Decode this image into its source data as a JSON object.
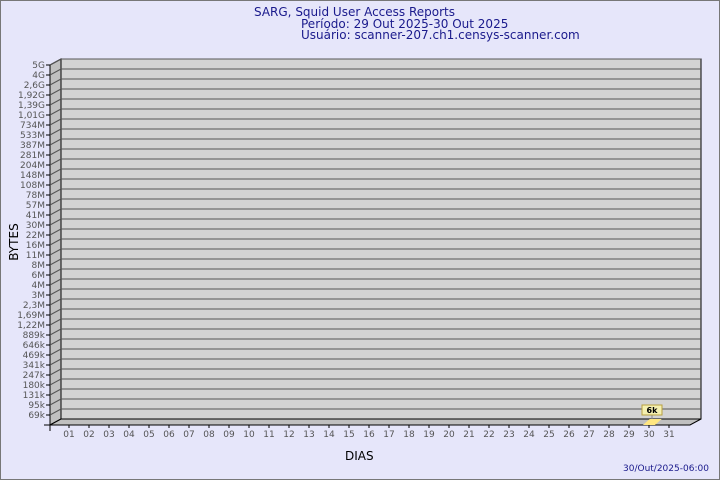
{
  "header": {
    "title": "SARG, Squid User Access Reports",
    "period": "Período: 29 Out 2025-30 Out 2025",
    "user": "Usuário: scanner-207.ch1.censys-scanner.com"
  },
  "footer": {
    "timestamp": "30/Out/2025-06:00"
  },
  "colors": {
    "background": "#e6e6fa",
    "plot_wall": "#d3d3d3",
    "bar": "#ffe680",
    "text": "#1a1a8c"
  },
  "chart_data": {
    "type": "bar",
    "xlabel": "DIAS",
    "ylabel": "BYTES",
    "y_scale": "log",
    "y_tick_labels": [
      "5G",
      "4G",
      "2,6G",
      "1,92G",
      "1,39G",
      "1,01G",
      "734M",
      "533M",
      "387M",
      "281M",
      "204M",
      "148M",
      "108M",
      "78M",
      "57M",
      "41M",
      "30M",
      "22M",
      "16M",
      "11M",
      "8M",
      "6M",
      "4M",
      "3M",
      "2,3M",
      "1,69M",
      "1,22M",
      "889k",
      "646k",
      "469k",
      "341k",
      "247k",
      "180k",
      "131k",
      "95k",
      "69k"
    ],
    "categories": [
      "01",
      "02",
      "03",
      "04",
      "05",
      "06",
      "07",
      "08",
      "09",
      "10",
      "11",
      "12",
      "13",
      "14",
      "15",
      "16",
      "17",
      "18",
      "19",
      "20",
      "21",
      "22",
      "23",
      "24",
      "25",
      "26",
      "27",
      "28",
      "29",
      "30",
      "31"
    ],
    "values": [
      null,
      null,
      null,
      null,
      null,
      null,
      null,
      null,
      null,
      null,
      null,
      null,
      null,
      null,
      null,
      null,
      null,
      null,
      null,
      null,
      null,
      null,
      null,
      null,
      null,
      null,
      null,
      null,
      null,
      6000,
      null
    ],
    "data_labels": {
      "30": "6k"
    },
    "grid": true
  }
}
